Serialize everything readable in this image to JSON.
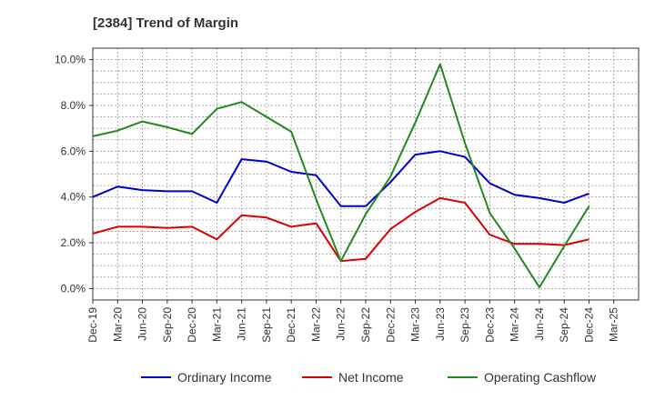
{
  "chart_data": {
    "type": "line",
    "title": "[2384]  Trend of Margin",
    "xlabel": "",
    "ylabel": "",
    "categories": [
      "Dec-19",
      "Mar-20",
      "Jun-20",
      "Sep-20",
      "Dec-20",
      "Mar-21",
      "Jun-21",
      "Sep-21",
      "Dec-21",
      "Mar-22",
      "Jun-22",
      "Sep-22",
      "Dec-22",
      "Mar-23",
      "Jun-23",
      "Sep-23",
      "Dec-23",
      "Mar-24",
      "Jun-24",
      "Sep-24",
      "Dec-24",
      "Mar-25"
    ],
    "y_ticks": [
      "0.0%",
      "2.0%",
      "4.0%",
      "6.0%",
      "8.0%",
      "10.0%"
    ],
    "ylim": [
      -0.5,
      10.5
    ],
    "grid": true,
    "legend_position": "bottom",
    "series": [
      {
        "name": "Ordinary Income",
        "color": "#0000cc",
        "values": [
          4.0,
          4.45,
          4.3,
          4.25,
          4.25,
          3.75,
          5.65,
          5.55,
          5.1,
          4.95,
          3.6,
          3.6,
          4.65,
          5.85,
          6.0,
          5.75,
          4.6,
          4.1,
          3.95,
          3.75,
          4.15,
          null
        ]
      },
      {
        "name": "Net Income",
        "color": "#dd0000",
        "values": [
          2.4,
          2.7,
          2.7,
          2.65,
          2.7,
          2.15,
          3.2,
          3.1,
          2.7,
          2.85,
          1.2,
          1.3,
          2.6,
          3.35,
          3.95,
          3.75,
          2.35,
          1.95,
          1.95,
          1.9,
          2.15,
          null
        ]
      },
      {
        "name": "Operating Cashflow",
        "color": "#228822",
        "values": [
          6.65,
          6.9,
          7.3,
          7.05,
          6.75,
          7.85,
          8.15,
          7.5,
          6.85,
          3.9,
          1.2,
          3.25,
          4.9,
          7.25,
          9.8,
          6.35,
          3.3,
          1.75,
          0.05,
          1.85,
          3.6,
          null
        ]
      }
    ]
  }
}
